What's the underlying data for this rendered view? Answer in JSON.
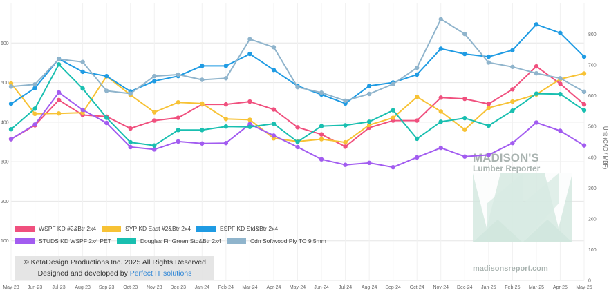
{
  "chart_data": {
    "type": "line",
    "title": "",
    "xlabel": "",
    "ylabel": "",
    "y2label": "Unit (CAD / MBF)",
    "categories": [
      "May-23",
      "Jun-23",
      "Jul-23",
      "Aug-23",
      "Sep-23",
      "Oct-23",
      "Nov-23",
      "Dec-23",
      "Jan-24",
      "Feb-24",
      "Mar-24",
      "Apr-24",
      "May-24",
      "Jun-24",
      "Jul-24",
      "Aug-24",
      "Sep-24",
      "Oct-24",
      "Nov-24",
      "Dec-24",
      "Jan-25",
      "Feb-25",
      "Mar-25",
      "Apr-25",
      "May-25"
    ],
    "ylim": [
      0,
      700
    ],
    "yticks": [
      100,
      200,
      300,
      400,
      500,
      600
    ],
    "y2lim": [
      0,
      900
    ],
    "y2ticks": [
      0,
      100,
      200,
      300,
      400,
      500,
      600,
      700,
      800
    ],
    "grid": true,
    "legend_position": "bottom-left",
    "series": [
      {
        "name": "WSPF KD #2&Btr 2x4",
        "axis": "left",
        "color": "#f0507e",
        "values": [
          357,
          392,
          456,
          418,
          414,
          384,
          404,
          411,
          445,
          445,
          452,
          432,
          387,
          369,
          338,
          386,
          404,
          404,
          462,
          459,
          446,
          483,
          541,
          497,
          445
        ]
      },
      {
        "name": "SYP KD East #2&Btr 2x4",
        "axis": "left",
        "color": "#f7c235",
        "values": [
          498,
          421,
          422,
          424,
          516,
          469,
          425,
          450,
          447,
          408,
          406,
          359,
          351,
          357,
          349,
          393,
          411,
          464,
          427,
          381,
          436,
          452,
          470,
          509,
          523
        ]
      },
      {
        "name": "ESPF KD Std&Btr 2x4",
        "axis": "right",
        "color": "#1f9be3",
        "values": [
          574,
          625,
          720,
          678,
          664,
          614,
          648,
          664,
          697,
          697,
          736,
          684,
          632,
          604,
          575,
          632,
          643,
          669,
          753,
          736,
          727,
          748,
          832,
          804,
          727
        ]
      },
      {
        "name": "STUDS KD WSPF 2x4 PET",
        "axis": "left",
        "color": "#a25cf0",
        "values": [
          357,
          394,
          475,
          431,
          398,
          337,
          331,
          351,
          346,
          347,
          395,
          366,
          337,
          306,
          292,
          297,
          286,
          311,
          335,
          313,
          317,
          347,
          399,
          378,
          341
        ]
      },
      {
        "name": "Douglas Fir Green Std&Btr 2x4",
        "axis": "left",
        "color": "#19bfb0",
        "values": [
          382,
          434,
          546,
          485,
          411,
          349,
          341,
          380,
          380,
          389,
          388,
          396,
          350,
          390,
          392,
          401,
          430,
          358,
          401,
          410,
          391,
          429,
          472,
          471,
          430
        ]
      },
      {
        "name": "Cdn Softwood Ply TO 9.5mm",
        "axis": "right",
        "color": "#8fb4cc",
        "values": [
          630,
          637,
          719,
          710,
          616,
          607,
          664,
          669,
          652,
          657,
          784,
          758,
          628,
          610,
          584,
          606,
          638,
          691,
          849,
          801,
          708,
          694,
          673,
          657,
          613
        ]
      }
    ]
  },
  "legend": {
    "items": [
      "WSPF KD #2&Btr 2x4",
      "SYP KD East #2&Btr 2x4",
      "ESPF KD Std&Btr 2x4",
      "STUDS KD WSPF 2x4 PET",
      "Douglas Fir Green Std&Btr 2x4",
      "Cdn Softwood Ply TO 9.5mm"
    ]
  },
  "copyright": {
    "line1": "© KetaDesign Productions Inc. 2025 All Rights Reserved",
    "line2_prefix": "Designed and developed by ",
    "line2_link": "Perfect IT solutions"
  },
  "watermark": {
    "brand_line1": "MADISON'S",
    "brand_line2": "Lumber Reporter",
    "url": "madisonsreport.com"
  }
}
